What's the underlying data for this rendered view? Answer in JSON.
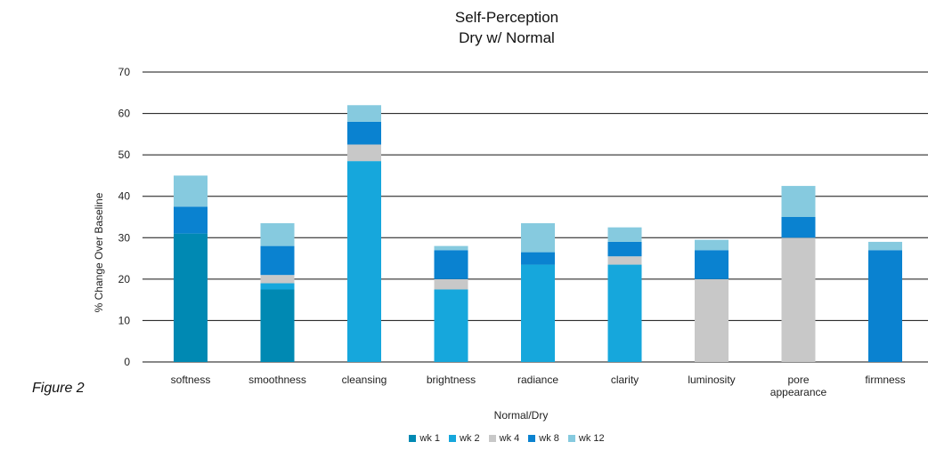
{
  "figure_label": "Figure 2",
  "chart_data": {
    "type": "bar",
    "stacked": true,
    "title": "Self-Perception",
    "subtitle": "Dry w/ Normal",
    "xlabel": "Normal/Dry",
    "ylabel": "% Change Over Baseline",
    "ylim": [
      0,
      70
    ],
    "yticks": [
      0,
      10,
      20,
      30,
      40,
      50,
      60,
      70
    ],
    "grid": true,
    "legend_position": "bottom",
    "categories": [
      "softness",
      "smoothness",
      "cleansing",
      "brightness",
      "radiance",
      "clarity",
      "luminosity",
      "pore appearance",
      "firmness"
    ],
    "series": [
      {
        "name": "wk 1",
        "color": "#0089b3",
        "values": [
          31,
          17.5,
          0,
          0,
          0,
          0,
          0,
          0,
          0
        ]
      },
      {
        "name": "wk 2",
        "color": "#16a7dc",
        "values": [
          0,
          1.5,
          48.5,
          17.5,
          23.5,
          23.5,
          0,
          0,
          0
        ]
      },
      {
        "name": "wk 4",
        "color": "#c8c8c8",
        "values": [
          0,
          2,
          4,
          2.5,
          0,
          2,
          20,
          30,
          0
        ]
      },
      {
        "name": "wk 8",
        "color": "#0a82d0",
        "values": [
          6.5,
          7,
          5.5,
          7,
          3,
          3.5,
          7,
          5,
          27
        ]
      },
      {
        "name": "wk 12",
        "color": "#86cadf",
        "values": [
          7.5,
          5.5,
          4,
          1,
          7,
          3.5,
          2.5,
          7.5,
          2
        ]
      }
    ]
  }
}
